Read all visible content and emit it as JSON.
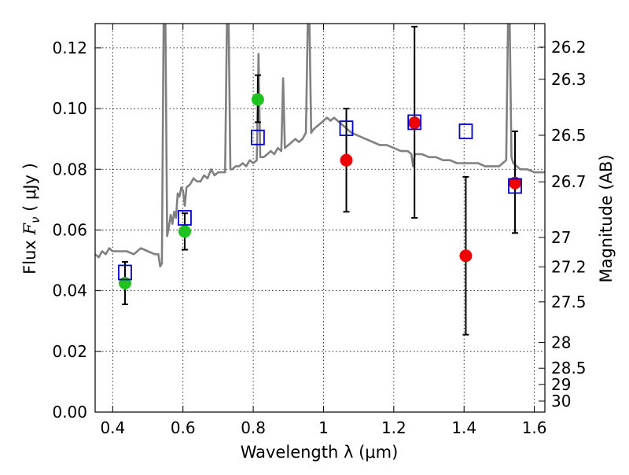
{
  "chart_data": {
    "type": "scatter",
    "xlabel": "Wavelength  λ (μm)",
    "ylabel_text": "Flux  ",
    "ylabel_symbol": "F",
    "ylabel_subscript": "ν",
    "ylabel_units": "  ( μJy )",
    "y2label": "Magnitude (AB)",
    "xlim": [
      0.35,
      1.63
    ],
    "ylim": [
      0.0,
      0.128
    ],
    "grid": true,
    "x_ticks": [
      0.4,
      0.6,
      0.8,
      1.0,
      1.2,
      1.4,
      1.6
    ],
    "x_tick_labels": [
      "0.4",
      "0.6",
      "0.8",
      "1",
      "1.2",
      "1.4",
      "1.6"
    ],
    "y_ticks": [
      0.0,
      0.02,
      0.04,
      0.06,
      0.08,
      0.1,
      0.12
    ],
    "y_tick_labels": [
      "0.00",
      "0.02",
      "0.04",
      "0.06",
      "0.08",
      "0.10",
      "0.12"
    ],
    "mag_ticks": [
      26.2,
      26.3,
      26.5,
      26.7,
      27,
      27.2,
      27.5,
      28,
      28.5,
      29,
      30
    ],
    "mag_tick_labels": [
      "26.2",
      "26.3",
      "26.5",
      "26.7",
      "27",
      "27.2",
      "27.5",
      "28",
      "28.5",
      "29",
      "30"
    ],
    "colors": {
      "spectrum": "#808080",
      "green": "#1ec31e",
      "red": "#ee0000",
      "blue": "#0000cc",
      "errorbar": "#000000"
    },
    "series": [
      {
        "kind": "line",
        "color": "#808080",
        "points": [
          [
            0.35,
            0.052
          ],
          [
            0.36,
            0.051
          ],
          [
            0.37,
            0.053
          ],
          [
            0.38,
            0.052
          ],
          [
            0.39,
            0.054
          ],
          [
            0.4,
            0.053
          ],
          [
            0.42,
            0.053
          ],
          [
            0.44,
            0.053
          ],
          [
            0.46,
            0.052
          ],
          [
            0.48,
            0.054
          ],
          [
            0.5,
            0.053
          ],
          [
            0.52,
            0.052
          ],
          [
            0.53,
            0.052
          ],
          [
            0.535,
            0.048
          ],
          [
            0.54,
            0.049
          ],
          [
            0.545,
            0.128
          ],
          [
            0.55,
            0.128
          ],
          [
            0.555,
            0.058
          ],
          [
            0.56,
            0.061
          ],
          [
            0.565,
            0.065
          ],
          [
            0.57,
            0.062
          ],
          [
            0.575,
            0.066
          ],
          [
            0.58,
            0.064
          ],
          [
            0.585,
            0.072
          ],
          [
            0.59,
            0.071
          ],
          [
            0.595,
            0.074
          ],
          [
            0.6,
            0.073
          ],
          [
            0.605,
            0.068
          ],
          [
            0.61,
            0.074
          ],
          [
            0.62,
            0.075
          ],
          [
            0.63,
            0.077
          ],
          [
            0.64,
            0.076
          ],
          [
            0.65,
            0.076
          ],
          [
            0.66,
            0.078
          ],
          [
            0.67,
            0.077
          ],
          [
            0.68,
            0.08
          ],
          [
            0.69,
            0.078
          ],
          [
            0.7,
            0.079
          ],
          [
            0.71,
            0.079
          ],
          [
            0.72,
            0.079
          ],
          [
            0.725,
            0.128
          ],
          [
            0.73,
            0.128
          ],
          [
            0.735,
            0.08
          ],
          [
            0.74,
            0.08
          ],
          [
            0.75,
            0.081
          ],
          [
            0.76,
            0.081
          ],
          [
            0.77,
            0.082
          ],
          [
            0.78,
            0.081
          ],
          [
            0.79,
            0.083
          ],
          [
            0.8,
            0.082
          ],
          [
            0.81,
            0.083
          ],
          [
            0.815,
            0.118
          ],
          [
            0.82,
            0.084
          ],
          [
            0.83,
            0.084
          ],
          [
            0.84,
            0.085
          ],
          [
            0.85,
            0.086
          ],
          [
            0.86,
            0.085
          ],
          [
            0.87,
            0.087
          ],
          [
            0.88,
            0.086
          ],
          [
            0.885,
            0.11
          ],
          [
            0.89,
            0.087
          ],
          [
            0.9,
            0.088
          ],
          [
            0.91,
            0.089
          ],
          [
            0.92,
            0.09
          ],
          [
            0.93,
            0.089
          ],
          [
            0.94,
            0.09
          ],
          [
            0.95,
            0.092
          ],
          [
            0.955,
            0.128
          ],
          [
            0.96,
            0.128
          ],
          [
            0.965,
            0.092
          ],
          [
            0.97,
            0.093
          ],
          [
            0.98,
            0.094
          ],
          [
            0.99,
            0.095
          ],
          [
            1.0,
            0.096
          ],
          [
            1.01,
            0.097
          ],
          [
            1.02,
            0.096
          ],
          [
            1.03,
            0.097
          ],
          [
            1.04,
            0.096
          ],
          [
            1.05,
            0.095
          ],
          [
            1.06,
            0.094
          ],
          [
            1.07,
            0.093
          ],
          [
            1.08,
            0.092
          ],
          [
            1.1,
            0.091
          ],
          [
            1.12,
            0.09
          ],
          [
            1.14,
            0.089
          ],
          [
            1.16,
            0.088
          ],
          [
            1.18,
            0.088
          ],
          [
            1.2,
            0.087
          ],
          [
            1.22,
            0.086
          ],
          [
            1.24,
            0.086
          ],
          [
            1.25,
            0.085
          ],
          [
            1.255,
            0.081
          ],
          [
            1.26,
            0.085
          ],
          [
            1.28,
            0.085
          ],
          [
            1.3,
            0.084
          ],
          [
            1.32,
            0.084
          ],
          [
            1.34,
            0.083
          ],
          [
            1.36,
            0.083
          ],
          [
            1.38,
            0.082
          ],
          [
            1.4,
            0.082
          ],
          [
            1.42,
            0.082
          ],
          [
            1.44,
            0.082
          ],
          [
            1.46,
            0.081
          ],
          [
            1.48,
            0.081
          ],
          [
            1.5,
            0.081
          ],
          [
            1.51,
            0.082
          ],
          [
            1.52,
            0.083
          ],
          [
            1.525,
            0.128
          ],
          [
            1.53,
            0.128
          ],
          [
            1.535,
            0.084
          ],
          [
            1.54,
            0.082
          ],
          [
            1.55,
            0.081
          ],
          [
            1.56,
            0.08
          ],
          [
            1.58,
            0.08
          ],
          [
            1.6,
            0.079
          ],
          [
            1.62,
            0.079
          ],
          [
            1.63,
            0.079
          ]
        ]
      },
      {
        "kind": "scatter",
        "marker": "circle",
        "color": "#1ec31e",
        "points": [
          {
            "x": 0.435,
            "y": 0.0425,
            "err": [
              0.0355,
              0.0495
            ]
          },
          {
            "x": 0.605,
            "y": 0.0595,
            "err": [
              0.0535,
              0.0655
            ]
          },
          {
            "x": 0.813,
            "y": 0.103,
            "err": [
              0.0955,
              0.111
            ]
          }
        ]
      },
      {
        "kind": "scatter",
        "marker": "circle",
        "color": "#ee0000",
        "points": [
          {
            "x": 1.065,
            "y": 0.083,
            "err": [
              0.066,
              0.1
            ]
          },
          {
            "x": 1.259,
            "y": 0.0953,
            "err": [
              0.064,
              0.127
            ]
          },
          {
            "x": 1.405,
            "y": 0.0515,
            "err": [
              0.0255,
              0.0775
            ]
          },
          {
            "x": 1.545,
            "y": 0.0755,
            "err": [
              0.059,
              0.0925
            ]
          }
        ]
      },
      {
        "kind": "scatter",
        "marker": "open-square",
        "color": "#0000cc",
        "points": [
          {
            "x": 0.435,
            "y": 0.046
          },
          {
            "x": 0.605,
            "y": 0.064
          },
          {
            "x": 0.813,
            "y": 0.0905
          },
          {
            "x": 1.065,
            "y": 0.0935
          },
          {
            "x": 1.259,
            "y": 0.0955
          },
          {
            "x": 1.405,
            "y": 0.0925
          },
          {
            "x": 1.545,
            "y": 0.0745
          }
        ]
      }
    ]
  }
}
